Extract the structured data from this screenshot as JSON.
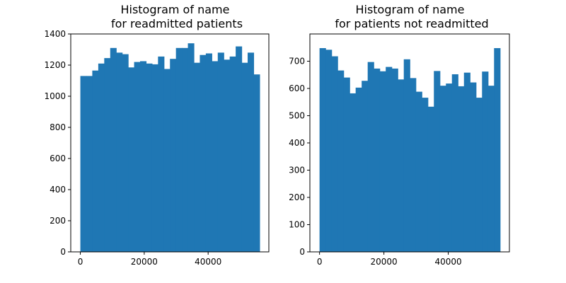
{
  "chart_data": [
    {
      "type": "bar",
      "title": "Histogram of name\nfor readmitted patients",
      "xlabel": "",
      "ylabel": "",
      "color": "#1f77b4",
      "grid": false,
      "xlim": [
        -3000,
        59000
      ],
      "ylim": [
        0,
        1400
      ],
      "x_ticks": [
        0,
        20000,
        40000
      ],
      "y_ticks": [
        0,
        200,
        400,
        600,
        800,
        1000,
        1200,
        1400
      ],
      "bin_start": 0,
      "bin_width": 1870,
      "values": [
        1130,
        1130,
        1165,
        1210,
        1245,
        1310,
        1280,
        1270,
        1185,
        1220,
        1225,
        1210,
        1205,
        1255,
        1175,
        1240,
        1310,
        1310,
        1340,
        1215,
        1265,
        1275,
        1225,
        1280,
        1235,
        1255,
        1320,
        1215,
        1280,
        1140
      ]
    },
    {
      "type": "bar",
      "title": "Histogram of name\nfor patients not readmitted",
      "xlabel": "",
      "ylabel": "",
      "color": "#1f77b4",
      "grid": false,
      "xlim": [
        -3000,
        59000
      ],
      "ylim": [
        0,
        800
      ],
      "x_ticks": [
        0,
        20000,
        40000
      ],
      "y_ticks": [
        0,
        100,
        200,
        300,
        400,
        500,
        600,
        700
      ],
      "bin_start": 0,
      "bin_width": 1870,
      "values": [
        748,
        742,
        718,
        666,
        640,
        582,
        603,
        628,
        697,
        673,
        663,
        679,
        673,
        633,
        707,
        638,
        588,
        566,
        533,
        664,
        610,
        618,
        652,
        608,
        658,
        622,
        566,
        662,
        610,
        748
      ]
    }
  ]
}
